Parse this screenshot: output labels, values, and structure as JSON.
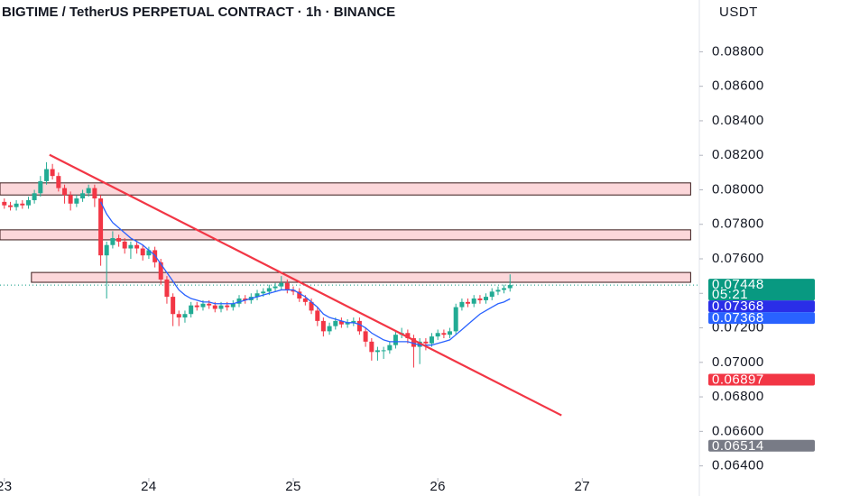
{
  "chart_data": {
    "type": "candlestick",
    "title": "BIGTIME / TetherUS PERPETUAL CONTRACT · 1h · BINANCE",
    "currency": "USDT",
    "x": [
      23,
      23.042,
      23.083,
      23.125,
      23.167,
      23.208,
      23.25,
      23.292,
      23.333,
      23.375,
      23.417,
      23.458,
      23.5,
      23.542,
      23.583,
      23.625,
      23.667,
      23.708,
      23.75,
      23.792,
      23.833,
      23.875,
      23.917,
      23.958,
      24,
      24.042,
      24.083,
      24.125,
      24.167,
      24.208,
      24.25,
      24.292,
      24.333,
      24.375,
      24.417,
      24.458,
      24.5,
      24.542,
      24.583,
      24.625,
      24.667,
      24.708,
      24.75,
      24.792,
      24.833,
      24.875,
      24.917,
      24.958,
      25,
      25.042,
      25.083,
      25.125,
      25.167,
      25.208,
      25.25,
      25.292,
      25.333,
      25.375,
      25.417,
      25.458,
      25.5,
      25.542,
      25.583,
      25.625,
      25.667,
      25.708,
      25.75,
      25.792,
      25.833,
      25.875,
      25.917,
      25.958,
      26,
      26.042,
      26.083,
      26.125,
      26.167,
      26.208,
      26.25,
      26.292,
      26.333,
      26.375,
      26.417,
      26.458,
      26.5
    ],
    "open": [
      0.0793,
      0.0791,
      0.079,
      0.0792,
      0.0791,
      0.0794,
      0.0798,
      0.0805,
      0.0812,
      0.0808,
      0.0801,
      0.0797,
      0.0792,
      0.0795,
      0.0798,
      0.0801,
      0.0795,
      0.0762,
      0.0768,
      0.0772,
      0.077,
      0.0766,
      0.0768,
      0.0766,
      0.0762,
      0.0765,
      0.0758,
      0.0748,
      0.0738,
      0.0728,
      0.0726,
      0.0728,
      0.0733,
      0.0732,
      0.0734,
      0.0733,
      0.0731,
      0.0733,
      0.0732,
      0.0734,
      0.0737,
      0.0736,
      0.0738,
      0.074,
      0.0741,
      0.0743,
      0.0744,
      0.0746,
      0.0742,
      0.0741,
      0.0737,
      0.0735,
      0.073,
      0.0724,
      0.0718,
      0.0721,
      0.0724,
      0.0722,
      0.0723,
      0.0724,
      0.0718,
      0.0712,
      0.0706,
      0.0707,
      0.0707,
      0.071,
      0.0716,
      0.0717,
      0.0714,
      0.0709,
      0.0712,
      0.0711,
      0.0715,
      0.0717,
      0.0716,
      0.0718,
      0.0732,
      0.0735,
      0.0734,
      0.0737,
      0.0736,
      0.0738,
      0.0741,
      0.0742,
      0.0743
    ],
    "high": [
      0.0795,
      0.0793,
      0.0794,
      0.0794,
      0.0796,
      0.08,
      0.0808,
      0.0816,
      0.0815,
      0.081,
      0.0803,
      0.0799,
      0.0797,
      0.08,
      0.0803,
      0.0803,
      0.0797,
      0.077,
      0.0776,
      0.0774,
      0.0772,
      0.077,
      0.077,
      0.0768,
      0.0767,
      0.0767,
      0.076,
      0.075,
      0.074,
      0.073,
      0.073,
      0.0735,
      0.0735,
      0.0736,
      0.0736,
      0.0735,
      0.0735,
      0.0735,
      0.0736,
      0.0739,
      0.0739,
      0.074,
      0.0742,
      0.0743,
      0.0745,
      0.0746,
      0.075,
      0.0748,
      0.0744,
      0.0743,
      0.0739,
      0.0737,
      0.0732,
      0.0726,
      0.0723,
      0.0726,
      0.0726,
      0.0725,
      0.0726,
      0.0726,
      0.072,
      0.0714,
      0.0709,
      0.0709,
      0.0712,
      0.0718,
      0.072,
      0.0719,
      0.0716,
      0.0714,
      0.0714,
      0.0717,
      0.0719,
      0.0719,
      0.072,
      0.0734,
      0.0737,
      0.0737,
      0.0739,
      0.0739,
      0.074,
      0.0743,
      0.0744,
      0.0745,
      0.0751
    ],
    "low": [
      0.0789,
      0.0788,
      0.0788,
      0.0789,
      0.0789,
      0.0792,
      0.0796,
      0.0803,
      0.0806,
      0.0799,
      0.0792,
      0.0788,
      0.079,
      0.0793,
      0.0796,
      0.079,
      0.0756,
      0.0737,
      0.0766,
      0.0767,
      0.0763,
      0.076,
      0.0763,
      0.0759,
      0.076,
      0.0755,
      0.0745,
      0.0734,
      0.0721,
      0.0721,
      0.0723,
      0.0726,
      0.073,
      0.073,
      0.0731,
      0.0729,
      0.0729,
      0.073,
      0.073,
      0.0732,
      0.0734,
      0.0734,
      0.0736,
      0.0738,
      0.0739,
      0.0741,
      0.0742,
      0.074,
      0.0739,
      0.0735,
      0.0733,
      0.0728,
      0.0721,
      0.0715,
      0.0716,
      0.0719,
      0.072,
      0.072,
      0.0721,
      0.0716,
      0.0709,
      0.0701,
      0.0701,
      0.0702,
      0.0705,
      0.0708,
      0.0714,
      0.0711,
      0.0697,
      0.0699,
      0.0707,
      0.0709,
      0.0713,
      0.0714,
      0.0714,
      0.0716,
      0.073,
      0.0732,
      0.0732,
      0.0734,
      0.0734,
      0.0736,
      0.0739,
      0.074,
      0.0741
    ],
    "close": [
      0.0791,
      0.079,
      0.0792,
      0.0791,
      0.0794,
      0.0798,
      0.0805,
      0.0812,
      0.0808,
      0.0801,
      0.0797,
      0.0792,
      0.0795,
      0.0798,
      0.0801,
      0.0795,
      0.0762,
      0.0768,
      0.0772,
      0.077,
      0.0766,
      0.0768,
      0.0766,
      0.0762,
      0.0765,
      0.0758,
      0.0748,
      0.0738,
      0.0728,
      0.0726,
      0.0728,
      0.0733,
      0.0732,
      0.0734,
      0.0733,
      0.0731,
      0.0733,
      0.0732,
      0.0734,
      0.0737,
      0.0736,
      0.0738,
      0.074,
      0.0741,
      0.0743,
      0.0744,
      0.0746,
      0.0742,
      0.0741,
      0.0737,
      0.0735,
      0.073,
      0.0724,
      0.0718,
      0.0721,
      0.0724,
      0.0722,
      0.0723,
      0.0724,
      0.0718,
      0.0712,
      0.0706,
      0.0707,
      0.0707,
      0.071,
      0.0716,
      0.0717,
      0.0714,
      0.0709,
      0.0712,
      0.0711,
      0.0715,
      0.0717,
      0.0716,
      0.0718,
      0.0732,
      0.0735,
      0.0734,
      0.0737,
      0.0736,
      0.0738,
      0.0741,
      0.0742,
      0.0743,
      0.07448
    ],
    "up_color": "#22ab94",
    "down_color": "#f23645",
    "ma": {
      "color": "#2962ff",
      "values": [
        null,
        null,
        null,
        null,
        null,
        null,
        null,
        null,
        null,
        null,
        null,
        null,
        null,
        null,
        null,
        null,
        0.0793,
        0.0786,
        0.0781,
        0.0778,
        0.0775,
        0.0772,
        0.077,
        0.0768,
        0.0765,
        0.0762,
        0.0757,
        0.0752,
        0.0747,
        0.0742,
        0.0739,
        0.0737,
        0.0736,
        0.0735,
        0.0735,
        0.0734,
        0.0734,
        0.0734,
        0.0734,
        0.0735,
        0.0736,
        0.0737,
        0.0738,
        0.0739,
        0.074,
        0.0741,
        0.0742,
        0.0742,
        0.0742,
        0.074,
        0.0738,
        0.0735,
        0.0732,
        0.0728,
        0.0726,
        0.0725,
        0.0724,
        0.0723,
        0.0723,
        0.0722,
        0.072,
        0.0717,
        0.0715,
        0.0713,
        0.0712,
        0.0712,
        0.0712,
        0.0712,
        0.0711,
        0.071,
        0.071,
        0.071,
        0.0711,
        0.0712,
        0.0713,
        0.0716,
        0.0719,
        0.0722,
        0.0725,
        0.0728,
        0.073,
        0.0732,
        0.0734,
        0.0735,
        0.07368
      ]
    },
    "trendline": {
      "x": [
        23.3125,
        26.856
      ],
      "y": [
        0.08203,
        0.06693
      ],
      "color": "#f23645"
    },
    "zones": [
      {
        "x": [
          22.97,
          27.75
        ],
        "y": [
          0.0797,
          0.0804
        ]
      },
      {
        "x": [
          22.97,
          27.75
        ],
        "y": [
          0.0771,
          0.07768
        ]
      },
      {
        "x": [
          23.1875,
          27.75
        ],
        "y": [
          0.07464,
          0.07521
        ]
      }
    ],
    "zone_color": "#f23645",
    "price_labels": [
      {
        "value": 0.07448,
        "label": "0.07448",
        "color": "#089981"
      },
      {
        "value": 0.07368,
        "label": "0.07368",
        "color": "#2a2ee8"
      },
      {
        "value": 0.07368,
        "label": "0.07368",
        "color": "#2962ff"
      },
      {
        "value": 0.06897,
        "label": "0.06897",
        "color": "#f23645"
      },
      {
        "value": 0.06514,
        "label": "0.06514",
        "color": "#787b86"
      }
    ],
    "countdown": "05:21",
    "xlim": [
      22.97,
      27.81
    ],
    "ylim": [
      0.0633,
      0.091
    ],
    "xticks": [
      23,
      24,
      25,
      26,
      27
    ],
    "yticks": [
      {
        "value": 0.064,
        "label": "0.06400"
      },
      {
        "value": 0.066,
        "label": "0.06600"
      },
      {
        "value": 0.068,
        "label": "0.06800"
      },
      {
        "value": 0.07,
        "label": "0.07000"
      },
      {
        "value": 0.072,
        "label": "0.07200"
      },
      {
        "value": 0.074,
        "label": "0.07400"
      },
      {
        "value": 0.076,
        "label": "0.07600"
      },
      {
        "value": 0.078,
        "label": "0.07800"
      },
      {
        "value": 0.08,
        "label": "0.08000"
      },
      {
        "value": 0.082,
        "label": "0.08200"
      },
      {
        "value": 0.084,
        "label": "0.08400"
      },
      {
        "value": 0.086,
        "label": "0.08600"
      },
      {
        "value": 0.088,
        "label": "0.08800"
      }
    ]
  }
}
